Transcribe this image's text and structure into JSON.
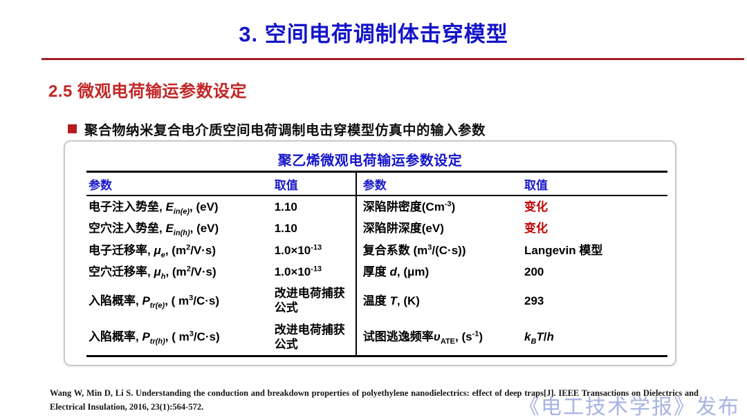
{
  "slide": {
    "title": "3. 空间电荷调制体击穿模型",
    "section_heading": "2.5 微观电荷输运参数设定",
    "bullet_text": "聚合物纳米复合电介质空间电荷调制电击穿模型仿真中的输入参数"
  },
  "table": {
    "title": "聚乙烯微观电荷输运参数设定",
    "headers": [
      "参数",
      "取值",
      "参数",
      "取值"
    ],
    "rows": [
      {
        "param1": "电子注入势垒, *E_{in(e)}*, (eV)",
        "value1": "1.10",
        "param2": "深陷阱密度(Cm^{-3})",
        "value2": "变化",
        "value2_red": true
      },
      {
        "param1": "空穴注入势垒, *E_{in(h)}*, (eV)",
        "value1": "1.10",
        "param2": "深陷阱深度(eV)",
        "value2": "变化",
        "value2_red": true
      },
      {
        "param1": "电子迁移率, *μ_{e}*, (m^{2}/V·s)",
        "value1": "1.0×10^{-13}",
        "param2": "复合系数 (m^{3}/(C·s))",
        "value2": "Langevin 模型",
        "value2_red": false
      },
      {
        "param1": "空穴迁移率, *μ_{h}*, (m^{2}/V·s)",
        "value1": "1.0×10^{-13}",
        "param2": "厚度 *d*, (μm)",
        "value2": "200",
        "value2_red": false
      },
      {
        "param1": "入陷概率, *P_{tr(e)}*, ( m^{3}/C·s)",
        "value1": "改进电荷捕获公式",
        "param2": "温度 *T*, (K)",
        "value2": "293",
        "value2_red": false
      },
      {
        "param1": "入陷概率, *P_{tr(h)}*, ( m^{3}/C·s)",
        "value1": "改进电荷捕获公式",
        "param2": "试图逃逸频率*υ*_{ATE}, (s^{-1})",
        "value2": "*k_{B}T*/*h*",
        "value2_red": false
      }
    ]
  },
  "footer": {
    "citation": "Wang W, Min D, Li S. Understanding the conduction and breakdown properties of polyethylene nanodielectrics: effect of deep traps[J]. IEEE Transactions on Dielectrics and Electrical Insulation, 2016, 23(1):564-572.",
    "watermark": "《电工技术学报》发布"
  },
  "colors": {
    "title_blue": "#1414c8",
    "heading_red": "#c22525",
    "rule_red": "#9e2121",
    "value_red": "#c00000",
    "watermark_blue": "#a9b3e3"
  }
}
